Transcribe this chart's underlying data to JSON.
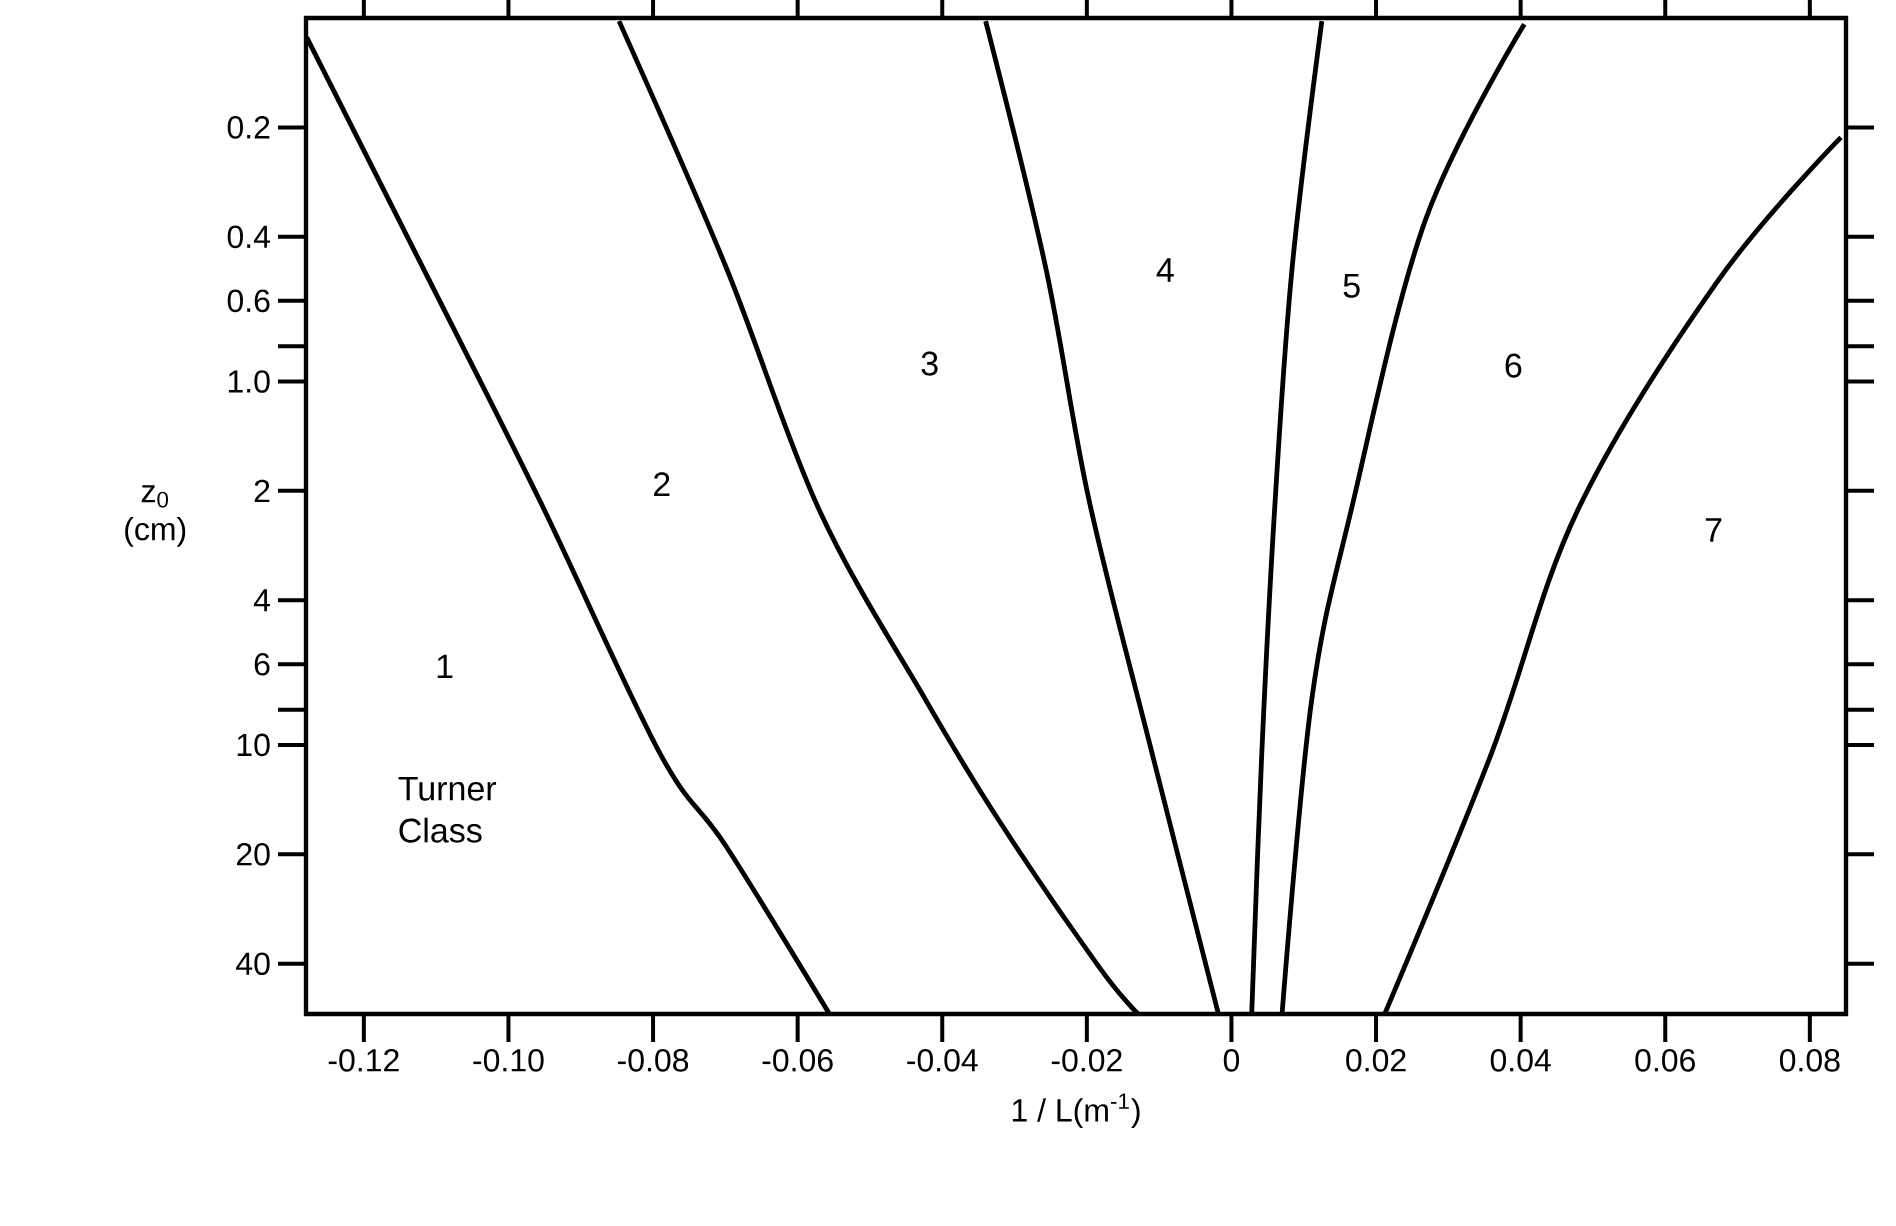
{
  "chart_data": {
    "type": "line",
    "xlabel": "1 / L(m$^{-1}$)",
    "ylabel": "z$_{0}$ (cm)",
    "xlim": [
      -0.128,
      0.085
    ],
    "ylim": [
      55,
      0.1
    ],
    "log": "y",
    "grid": false,
    "marker": "none",
    "line_style": "solid",
    "xticks": [
      -0.12,
      {
        "value": -0.1,
        "label": "-0.10"
      },
      -0.08,
      -0.06,
      -0.04,
      -0.02,
      0,
      0.02,
      0.04,
      0.06,
      0.08
    ],
    "yticks": [
      0.2,
      0.4,
      0.6,
      {
        "value": 0.8,
        "label": null
      },
      {
        "value": 1,
        "label": "1.0"
      },
      2,
      4,
      6,
      {
        "value": 8,
        "label": null
      },
      10,
      20,
      40
    ],
    "series": [
      {
        "color": "#000000",
        "x": [
          -0.1279,
          -0.1114,
          -0.0957,
          -0.0791,
          -0.0699,
          -0.0556
        ],
        "values": [
          0.113,
          0.506,
          2.12,
          10.5,
          19.0,
          55
        ]
      },
      {
        "color": "#000000",
        "x": [
          -0.0847,
          -0.0699,
          -0.057,
          -0.0423,
          -0.0322,
          -0.0184,
          -0.0129
        ],
        "values": [
          0.102,
          0.485,
          2.26,
          7.52,
          16.1,
          40.6,
          55
        ]
      },
      {
        "color": "#000000",
        "x": [
          -0.034,
          -0.0257,
          -0.0197,
          -0.011,
          -0.0018
        ],
        "values": [
          0.102,
          0.485,
          2.12,
          10.5,
          55
        ]
      },
      {
        "color": "#000000",
        "x": [
          0.0125,
          0.0084,
          0.006,
          0.0042,
          0.0028
        ],
        "values": [
          0.102,
          0.485,
          2.2,
          10.5,
          55
        ]
      },
      {
        "color": "#000000",
        "x": [
          0.0405,
          0.0268,
          0.0167,
          0.0111,
          0.007
        ],
        "values": [
          0.104,
          0.361,
          2.2,
          7.52,
          55
        ]
      },
      {
        "color": "#000000",
        "x": [
          0.0843,
          0.0673,
          0.0479,
          0.036,
          0.0212
        ],
        "values": [
          0.213,
          0.528,
          2.26,
          10.5,
          55
        ]
      }
    ],
    "annotations": [
      "1",
      "2",
      "3",
      "4",
      "5",
      "6",
      "7",
      "Turner Class"
    ]
  }
}
